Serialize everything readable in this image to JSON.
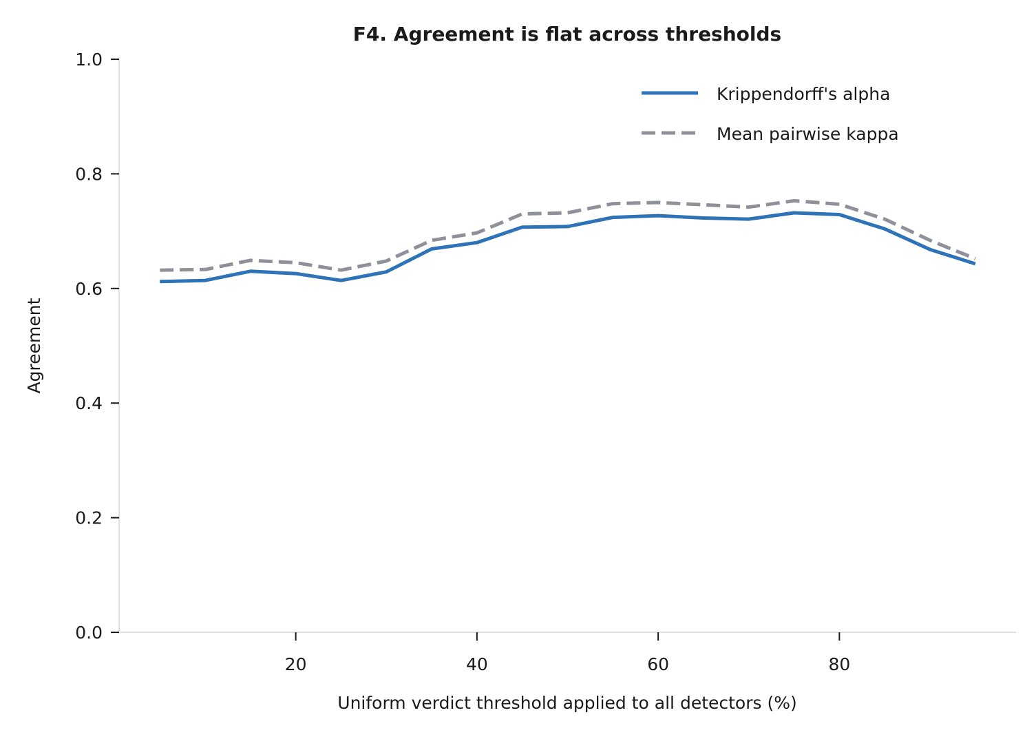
{
  "chart_data": {
    "type": "line",
    "title": "F4. Agreement is flat across thresholds",
    "xlabel": "Uniform verdict threshold applied to all detectors (%)",
    "ylabel": "Agreement",
    "xlim": [
      0.5,
      99.5
    ],
    "ylim": [
      0.0,
      1.0
    ],
    "x_ticks": [
      20,
      40,
      60,
      80
    ],
    "x_tick_labels": [
      "20",
      "40",
      "60",
      "80"
    ],
    "y_ticks": [
      0.0,
      0.2,
      0.4,
      0.6,
      0.8,
      1.0
    ],
    "y_tick_labels": [
      "0.0",
      "0.2",
      "0.4",
      "0.6",
      "0.8",
      "1.0"
    ],
    "grid": false,
    "legend_position": "top-right",
    "x": [
      5,
      10,
      15,
      20,
      25,
      30,
      35,
      40,
      45,
      50,
      55,
      60,
      65,
      70,
      75,
      80,
      85,
      90,
      95
    ],
    "series": [
      {
        "name": "Krippendorff's alpha",
        "style": "solid",
        "color": "#2e72b8",
        "values": [
          0.612,
          0.614,
          0.63,
          0.626,
          0.614,
          0.629,
          0.669,
          0.68,
          0.707,
          0.708,
          0.724,
          0.727,
          0.723,
          0.721,
          0.732,
          0.729,
          0.704,
          0.668,
          0.643
        ]
      },
      {
        "name": "Mean pairwise kappa",
        "style": "dashed",
        "color": "#8e9199",
        "values": [
          0.632,
          0.633,
          0.649,
          0.645,
          0.632,
          0.648,
          0.684,
          0.697,
          0.73,
          0.732,
          0.748,
          0.75,
          0.746,
          0.742,
          0.753,
          0.747,
          0.721,
          0.684,
          0.652
        ]
      }
    ]
  }
}
